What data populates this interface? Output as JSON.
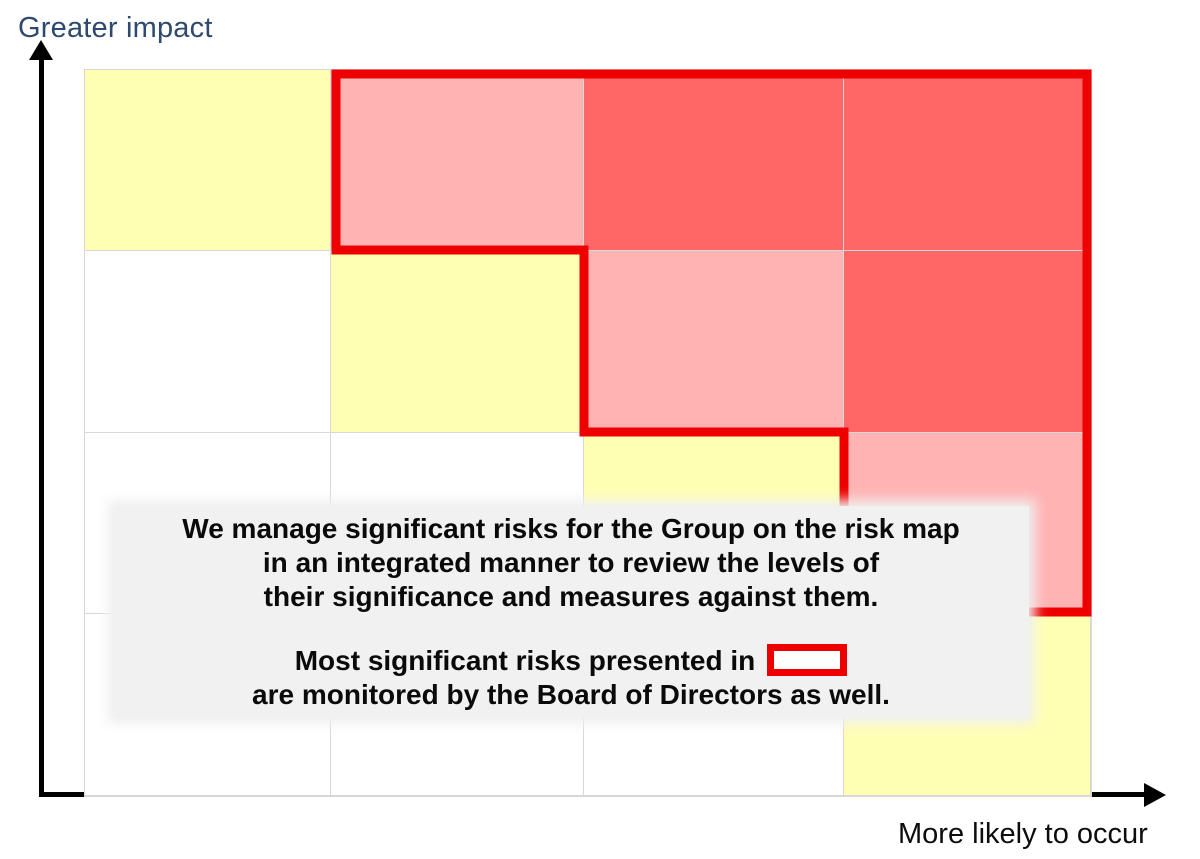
{
  "labels": {
    "y_axis": "Greater impact",
    "x_axis": "More likely to occur"
  },
  "note": {
    "line1": "We manage significant risks for the Group on the risk map",
    "line2": "in an integrated manner to review the levels of",
    "line3": "their significance and measures against them.",
    "line4_prefix": "Most significant risks presented in",
    "line5": "are monitored by the Board of Directors as well.",
    "legend_symbol": "red-outline-box"
  },
  "risk_matrix": {
    "rows": 4,
    "cols": 4,
    "cells_top_to_bottom": [
      [
        "yellow",
        "pink",
        "red",
        "red"
      ],
      [
        "white",
        "yellow",
        "pink",
        "red"
      ],
      [
        "white",
        "white",
        "yellow",
        "pink"
      ],
      [
        "white",
        "white",
        "white",
        "yellow"
      ]
    ],
    "outlined_region": "stepped red border around row1 cols2-4, row2 cols3-4, row3 col4 (most significant risks)"
  },
  "colors": {
    "white": "#ffffff",
    "yellow": "#ffffb3",
    "pink": "#ffb3b3",
    "red": "#ff6666",
    "outline": "#ee0000",
    "gridline": "#d8d8d8",
    "y_label": "#2e4a6e",
    "note_bg": "#f1f1f1"
  }
}
